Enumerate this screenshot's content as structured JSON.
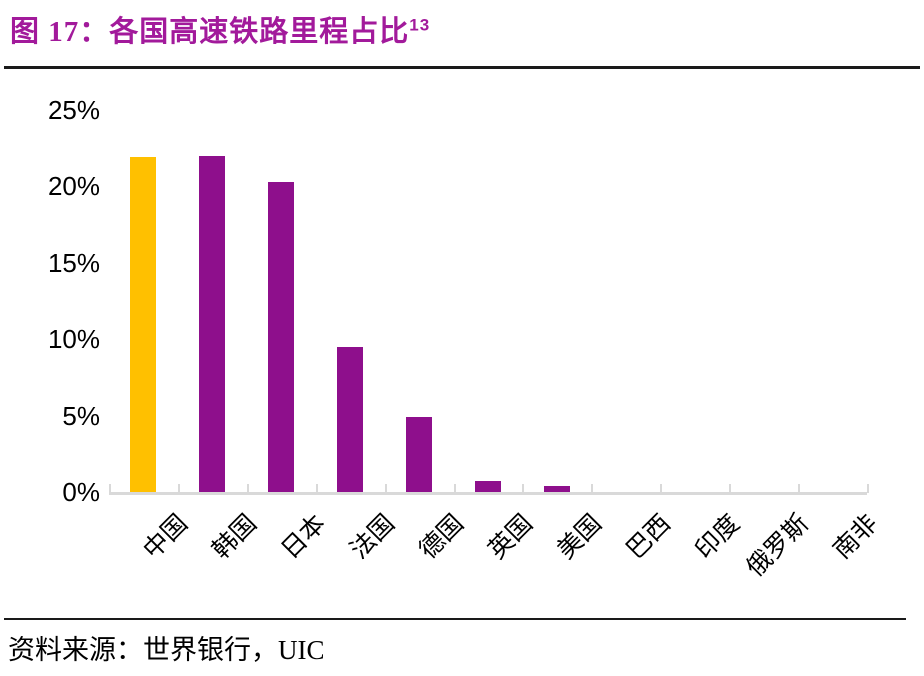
{
  "figure": {
    "title_label": "图 17：",
    "title_text": "各国高速铁路里程占比",
    "title_superscript": "13",
    "source_text": "资料来源：世界银行，UIC"
  },
  "colors": {
    "title": "#A21A9B",
    "bar": "#8E0F8C",
    "highlight_bar": "#FFC000",
    "axis": "#D9D9D9",
    "rule": "#1A1A1A",
    "text": "#000000"
  },
  "chart_data": {
    "type": "bar",
    "title": "各国高速铁路里程占比",
    "categories": [
      "中国",
      "韩国",
      "日本",
      "法国",
      "德国",
      "英国",
      "美国",
      "巴西",
      "印度",
      "俄罗斯",
      "南非"
    ],
    "values": [
      21.9,
      22.0,
      20.3,
      9.5,
      4.9,
      0.7,
      0.4,
      0,
      0,
      0,
      0
    ],
    "highlight_index": 0,
    "xlabel": "",
    "ylabel": "",
    "ylim": [
      0,
      25
    ],
    "y_ticks": [
      {
        "value": 25,
        "label": "25%"
      },
      {
        "value": 20,
        "label": "20%"
      },
      {
        "value": 15,
        "label": "15%"
      },
      {
        "value": 10,
        "label": "10%"
      },
      {
        "value": 5,
        "label": "5%"
      },
      {
        "value": 0,
        "label": "0%"
      }
    ],
    "grid": false,
    "legend": null,
    "x_label_rotation_deg": -45
  }
}
